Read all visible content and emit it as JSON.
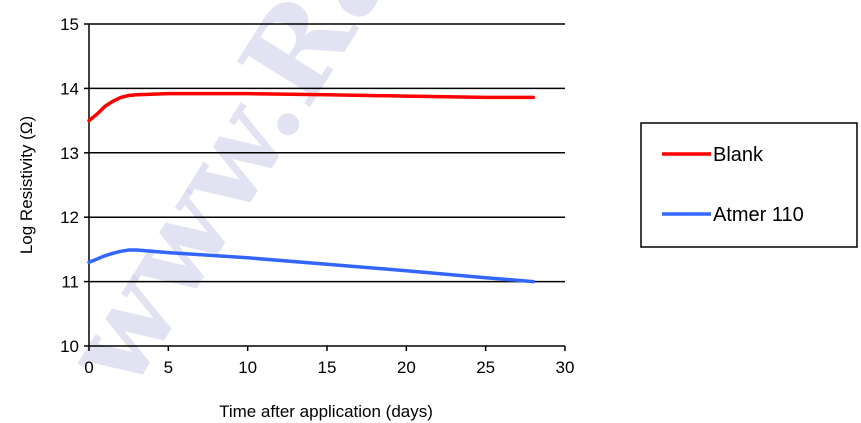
{
  "chart_data": {
    "type": "line",
    "xlabel": "Time after application (days)",
    "ylabel": "Log Resistivity (Ω)",
    "xlim": [
      0,
      30
    ],
    "ylim": [
      10,
      15
    ],
    "xticks": [
      0,
      5,
      10,
      15,
      20,
      25,
      30
    ],
    "yticks": [
      10,
      11,
      12,
      13,
      14,
      15
    ],
    "grid": "horizontal",
    "legend_position": "right",
    "series": [
      {
        "name": "Blank",
        "color": "#ff0000",
        "x": [
          0,
          0.5,
          1,
          1.5,
          2,
          2.5,
          3,
          5,
          10,
          15,
          20,
          25,
          28
        ],
        "y": [
          13.5,
          13.6,
          13.72,
          13.8,
          13.86,
          13.89,
          13.9,
          13.92,
          13.92,
          13.9,
          13.88,
          13.86,
          13.86
        ]
      },
      {
        "name": "Atmer 110",
        "color": "#3366ff",
        "x": [
          0,
          0.5,
          1,
          1.5,
          2,
          2.5,
          3,
          5,
          10,
          15,
          20,
          25,
          28
        ],
        "y": [
          11.3,
          11.35,
          11.4,
          11.44,
          11.47,
          11.49,
          11.49,
          11.45,
          11.37,
          11.27,
          11.17,
          11.06,
          11.0
        ]
      }
    ]
  },
  "watermark": {
    "text": "www.Rad",
    "color": "#c8cce8"
  }
}
